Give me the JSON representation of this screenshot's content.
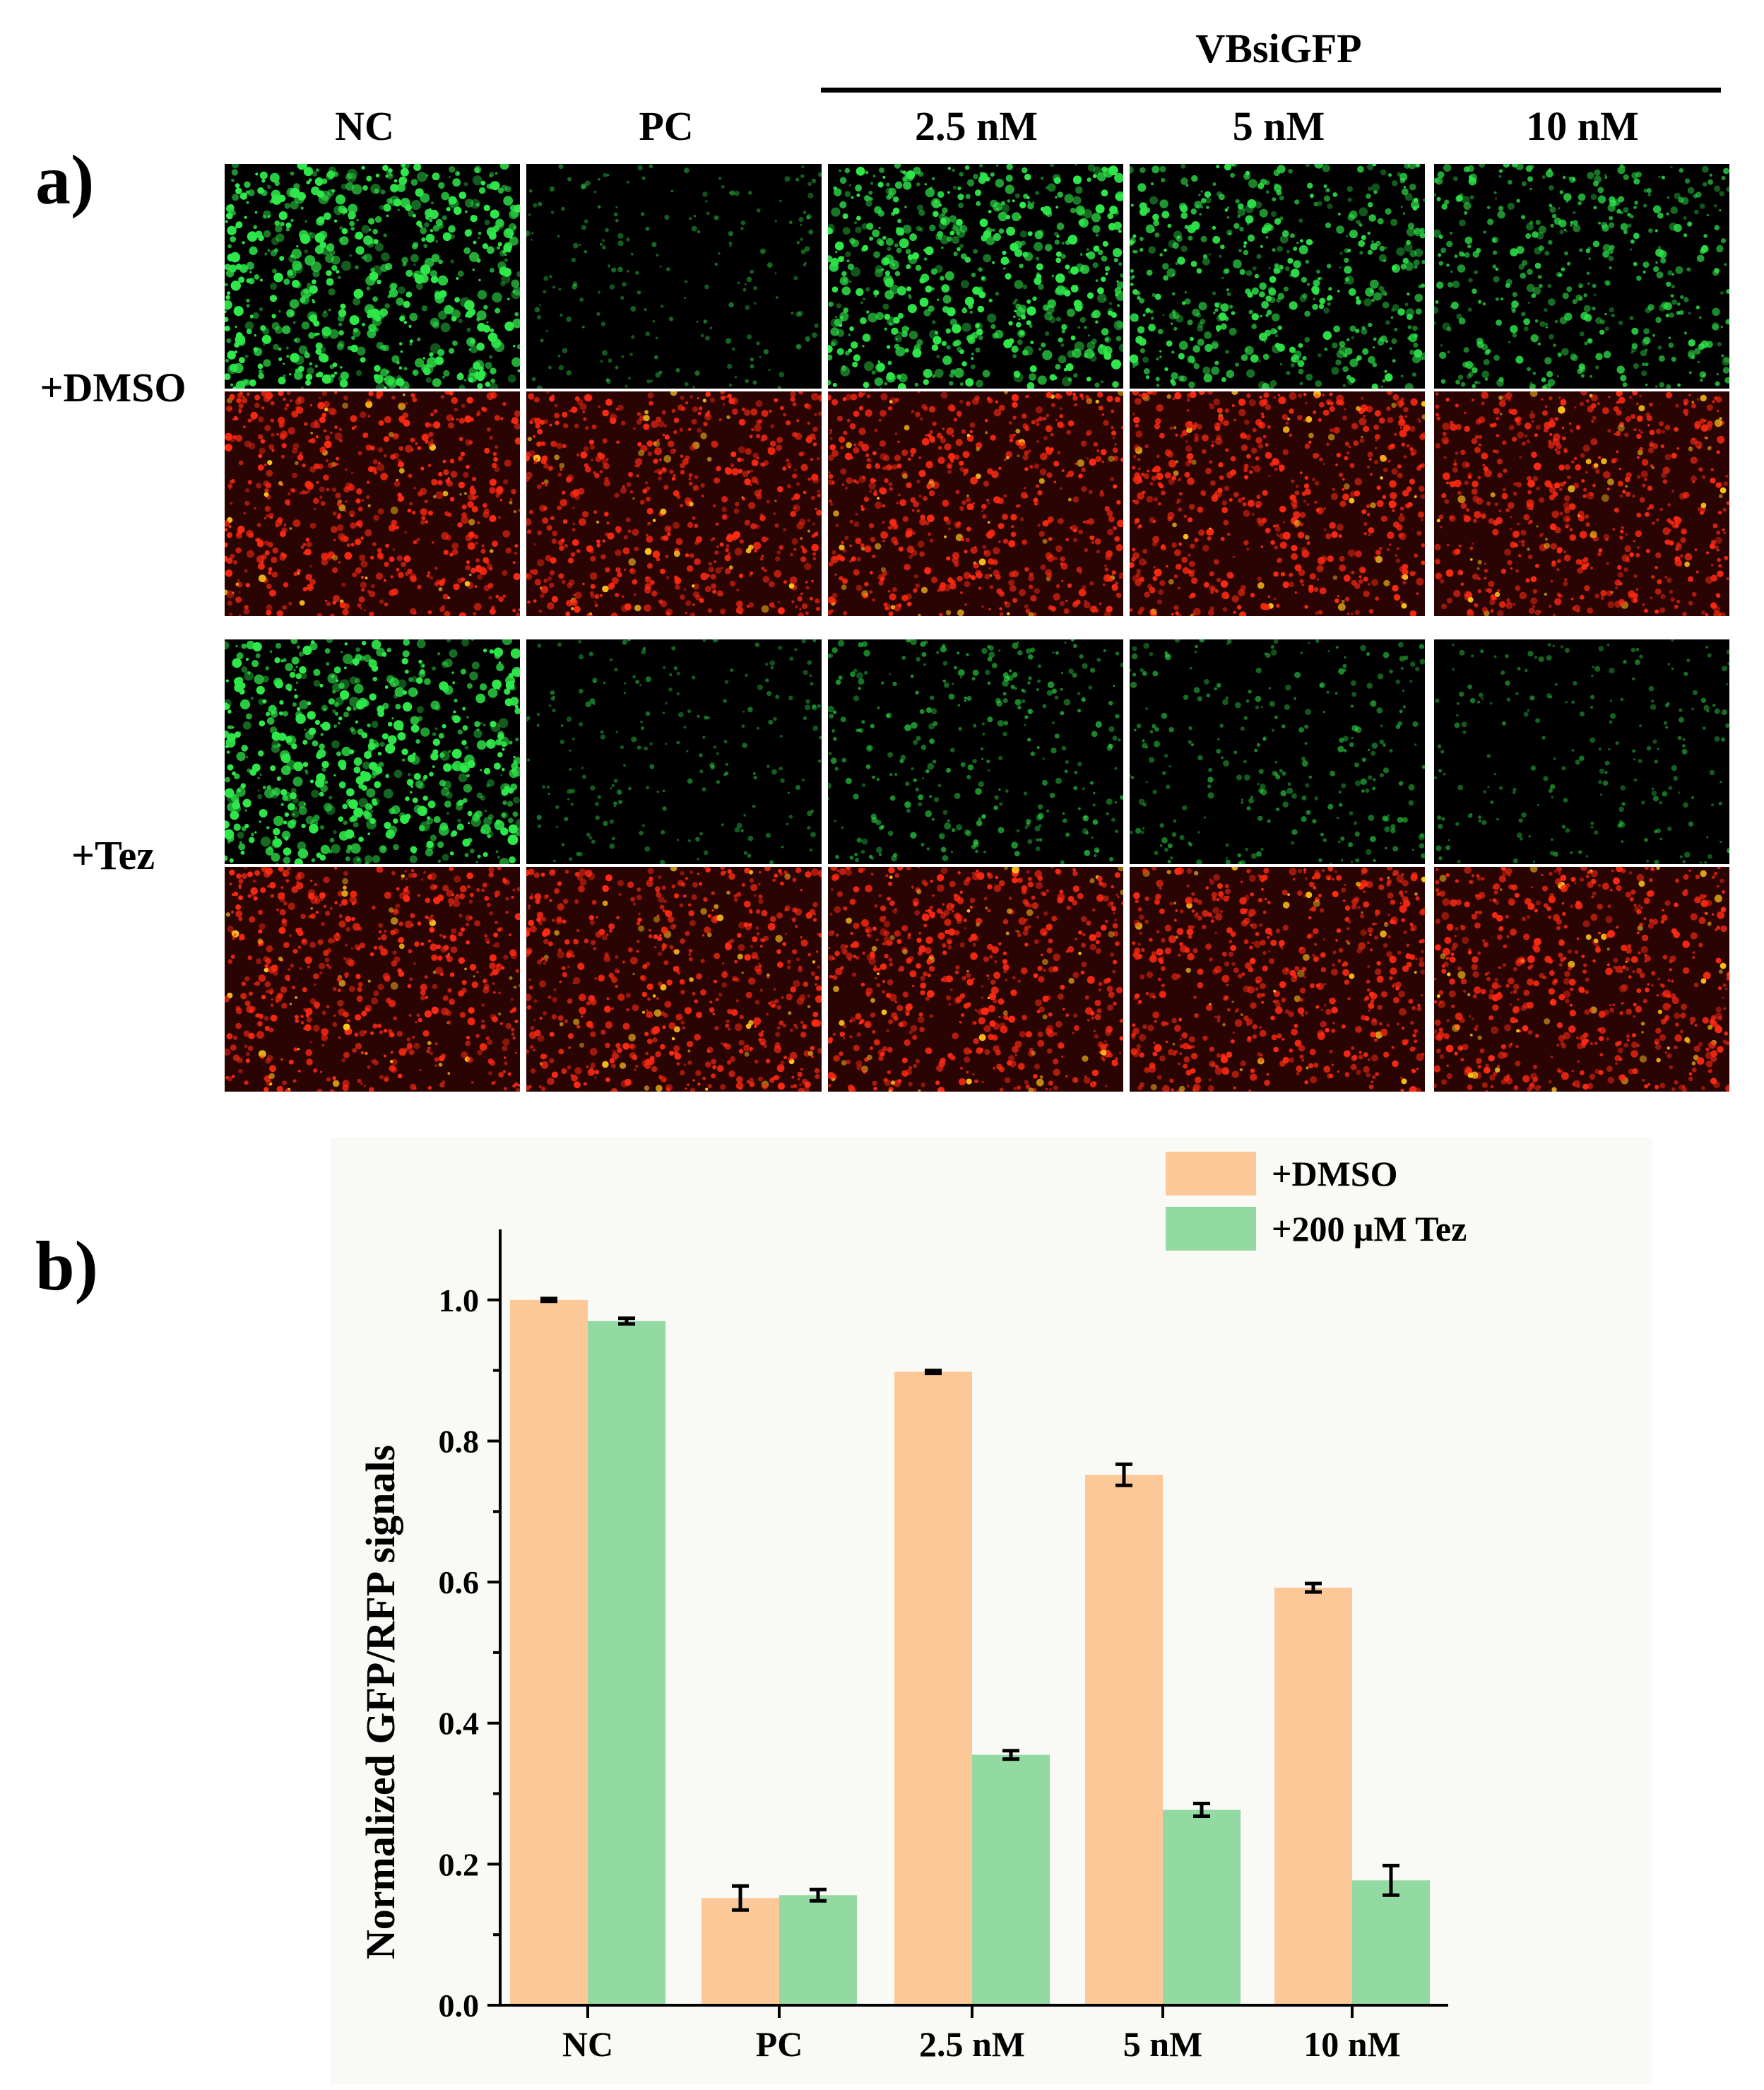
{
  "panel_a": {
    "label": "a)",
    "group_label": "VBsiGFP",
    "columns": [
      "NC",
      "PC",
      "2.5 nM",
      "5 nM",
      "10 nM"
    ],
    "row_groups": [
      "+DMSO",
      "+Tez"
    ],
    "colors": {
      "gfp": "#2ee84a",
      "rfp": "#ff2a12",
      "rfp_bright": "#ffc21a",
      "background": "#000000",
      "rfp_background": "#2a0303"
    },
    "gfp_density": {
      "dmso": [
        1.0,
        0.15,
        0.9,
        0.75,
        0.6
      ],
      "tez": [
        0.97,
        0.16,
        0.36,
        0.28,
        0.18
      ]
    }
  },
  "panel_b": {
    "label": "b)"
  },
  "chart_data": {
    "type": "bar",
    "categories": [
      "NC",
      "PC",
      "2.5 nM",
      "5 nM",
      "10 nM"
    ],
    "series": [
      {
        "name": "+DMSO",
        "color": "#fdc897",
        "values": [
          1.0,
          0.152,
          0.898,
          0.752,
          0.592
        ],
        "errors": [
          0.002,
          0.017,
          0.002,
          0.015,
          0.006
        ]
      },
      {
        "name": "+200 μM Tez",
        "color": "#93d9a2",
        "values": [
          0.97,
          0.156,
          0.355,
          0.277,
          0.177
        ],
        "errors": [
          0.004,
          0.008,
          0.006,
          0.009,
          0.021
        ]
      }
    ],
    "ylabel": "Normalized GFP/RFP signals",
    "xlabel": "",
    "ylim": [
      0,
      1.1
    ],
    "yticks": [
      "0.0",
      "0.2",
      "0.4",
      "0.6",
      "0.8",
      "1.0"
    ],
    "legend_position": "top-right",
    "grid": false
  }
}
